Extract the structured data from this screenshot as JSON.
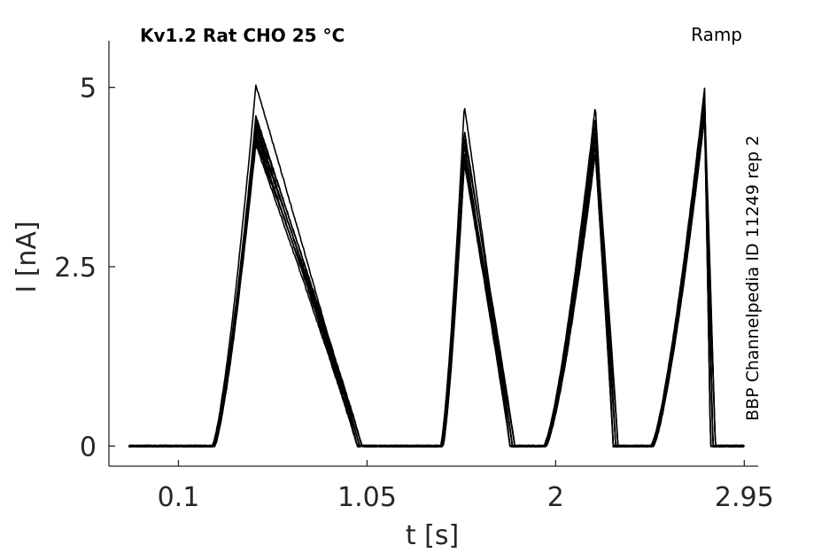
{
  "chart_data": {
    "type": "line",
    "title": "Kv1.2  Rat  CHO  25 °C",
    "protocol_label": "Ramp",
    "side_label": "BBP Channelpedia ID 11249 rep 2",
    "xlabel": "t [s]",
    "ylabel": "I [nA]",
    "xlim": [
      -0.25,
      3.02
    ],
    "ylim": [
      -0.28,
      5.65
    ],
    "xticks": [
      0.1,
      1.05,
      2,
      2.95
    ],
    "xtick_labels": [
      "0.1",
      "1.05",
      "2",
      "2.95"
    ],
    "yticks": [
      0,
      2.5,
      5
    ],
    "ytick_labels": [
      "0",
      "2.5",
      "5"
    ],
    "grid": false,
    "legend": "none",
    "trace_color": "#000000",
    "series_points_x": [
      -0.2,
      0.2,
      0.5,
      1.0,
      1.3,
      1.54,
      1.86,
      2.18,
      2.52,
      2.82
    ],
    "ramps": [
      {
        "start": 0.27,
        "peak": 0.49,
        "end": 1.0,
        "peaks": [
          5.03,
          4.6,
          4.55,
          4.5,
          4.45,
          4.4,
          4.35,
          4.3,
          4.25,
          4.2
        ]
      },
      {
        "start": 1.42,
        "peak": 1.54,
        "end": 1.77,
        "peaks": [
          4.75,
          4.4,
          4.3,
          4.2,
          4.1,
          4.05,
          4.0,
          3.95
        ]
      },
      {
        "start": 1.94,
        "peak": 2.2,
        "end": 2.29,
        "peaks": [
          4.75,
          4.6,
          4.5,
          4.4,
          4.3,
          4.2,
          4.1
        ]
      },
      {
        "start": 2.48,
        "peak": 2.75,
        "end": 2.78,
        "peaks": [
          5.0,
          4.9,
          4.8,
          4.7,
          4.6
        ]
      }
    ]
  }
}
